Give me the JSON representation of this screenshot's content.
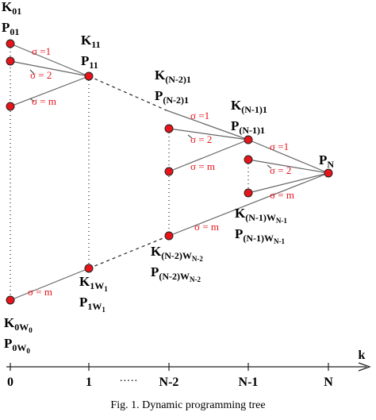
{
  "node_labels": [
    {
      "text": "K",
      "sub": "01"
    },
    {
      "text": "P",
      "sub": "01"
    },
    {
      "text": "K",
      "sub": "11"
    },
    {
      "text": "P",
      "sub": "11"
    },
    {
      "text": "K",
      "sub": "(N-2)1"
    },
    {
      "text": "P",
      "sub": "(N-2)1"
    },
    {
      "text": "K",
      "sub": "(N-1)1"
    },
    {
      "text": "P",
      "sub": "(N-1)1"
    },
    {
      "text": "P",
      "sub": "N"
    },
    {
      "text": "K",
      "sub": "(N-1)W",
      "subsub": "N-1"
    },
    {
      "text": "P",
      "sub": "(N-1)W",
      "subsub": "N-1"
    },
    {
      "text": "K",
      "sub": "(N-2)W",
      "subsub": "N-2"
    },
    {
      "text": "P",
      "sub": "(N-2)W",
      "subsub": "N-2"
    },
    {
      "text": "K",
      "sub": "1W",
      "subsub": "1"
    },
    {
      "text": "P",
      "sub": "1W",
      "subsub": "1"
    },
    {
      "text": "K",
      "sub": "0W",
      "subsub": "0"
    },
    {
      "text": "P",
      "sub": "0W",
      "subsub": "0"
    }
  ],
  "edge_labels": [
    "σ =1",
    "σ = 2",
    "σ = m",
    "σ =1",
    "σ = 2",
    "σ = m",
    "σ =1",
    "σ = 2",
    "σ = m",
    "σ = m",
    "σ = m"
  ],
  "axis": {
    "ticks": [
      "0",
      "1",
      "N-2",
      "N-1",
      "N"
    ],
    "ellipsis": "·····",
    "label": "k"
  },
  "caption": "Fig. 1.  Dynamic programming tree"
}
